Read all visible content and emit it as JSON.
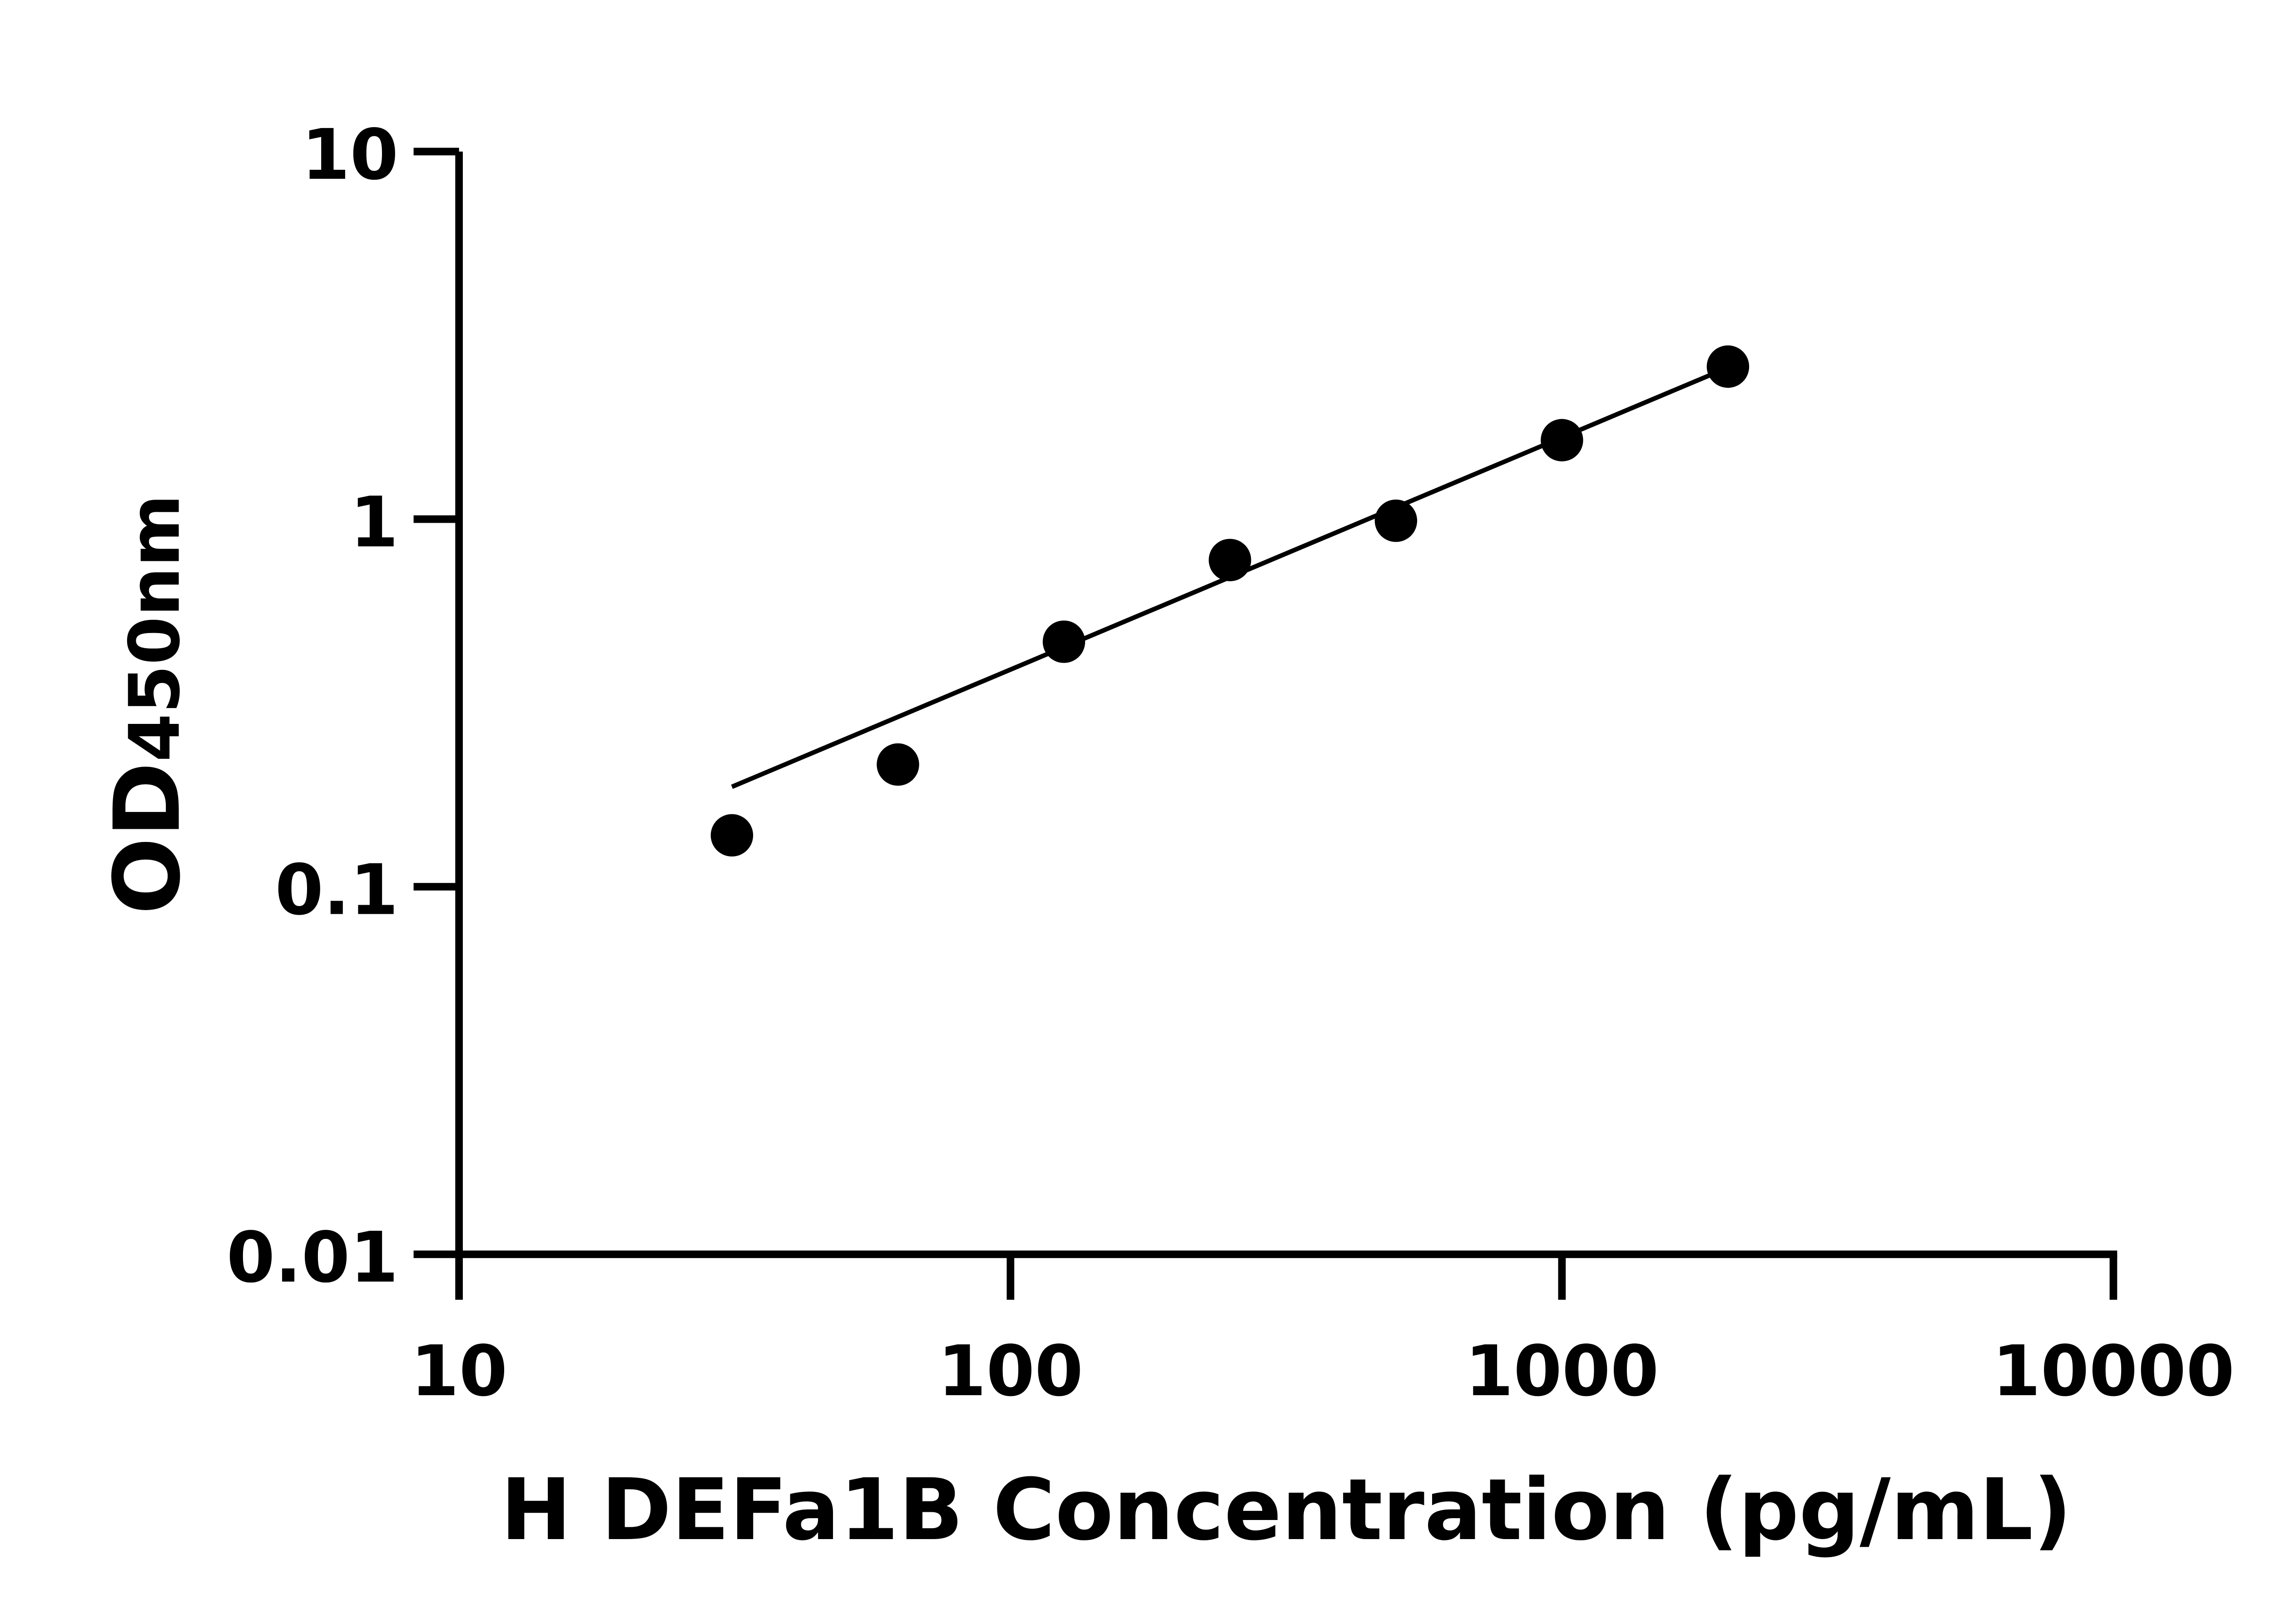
{
  "chart_data": {
    "type": "scatter",
    "title": "",
    "xlabel": "H DEFa1B Concentration (pg/mL)",
    "ylabel_main": "OD",
    "ylabel_sub": "450nm",
    "x_scale": "log",
    "y_scale": "log",
    "xlim": [
      10,
      10000
    ],
    "ylim": [
      0.01,
      10
    ],
    "x_ticks": [
      10,
      100,
      1000,
      10000
    ],
    "x_tick_labels": [
      "10",
      "100",
      "1000",
      "10000"
    ],
    "y_ticks": [
      0.01,
      0.1,
      1,
      10
    ],
    "y_tick_labels": [
      "0.01",
      "0.1",
      "1",
      "10"
    ],
    "grid": false,
    "points": {
      "x": [
        31.25,
        62.5,
        125,
        250,
        500,
        1000,
        2000
      ],
      "y": [
        0.138,
        0.215,
        0.464,
        0.774,
        0.99,
        1.64,
        2.6
      ]
    },
    "fit_line": {
      "x": [
        31.25,
        1850
      ],
      "y": [
        0.187,
        2.46
      ]
    },
    "marker_color": "#000000",
    "line_color": "#000000"
  }
}
